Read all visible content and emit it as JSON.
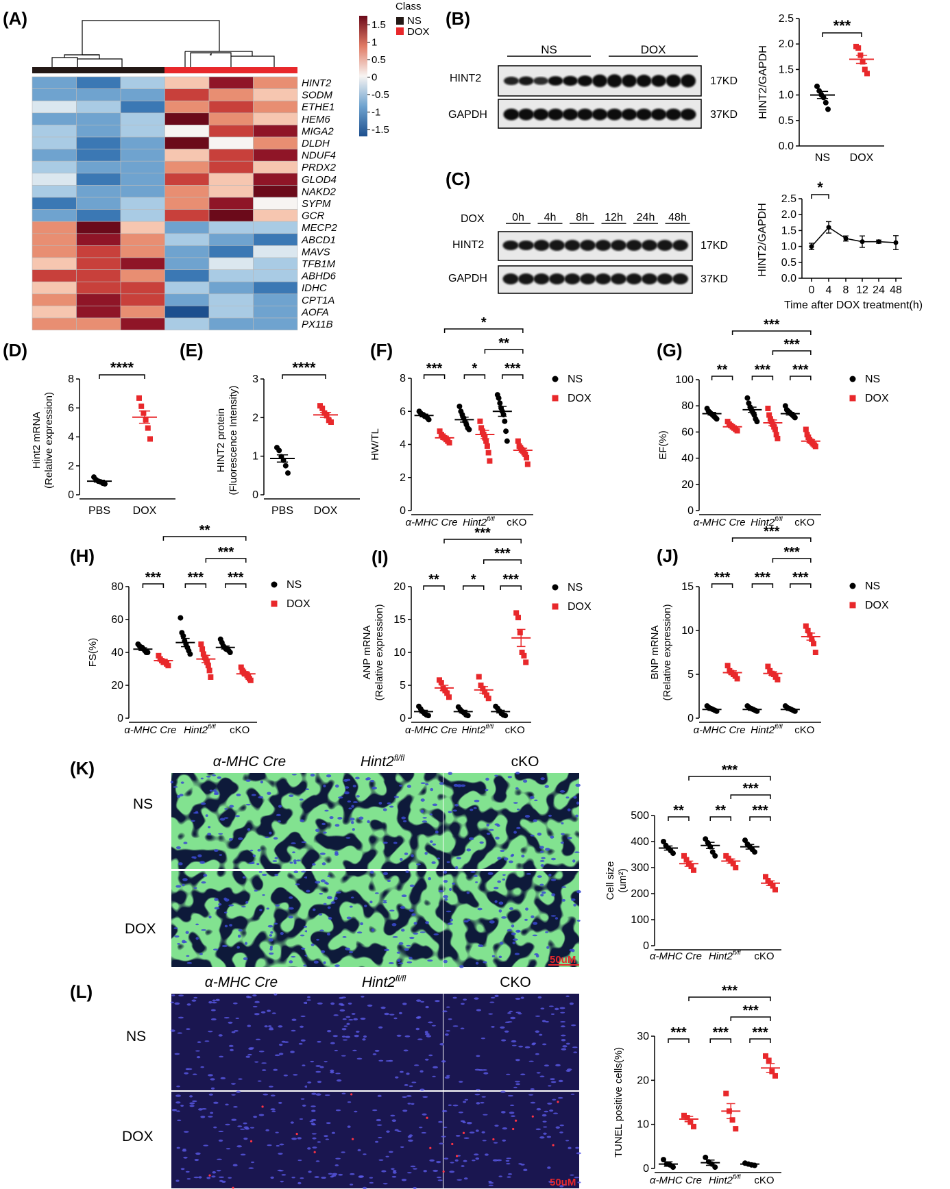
{
  "colors": {
    "ns": "#000000",
    "dox": "#e8282b",
    "micro_nuclei": "#3a4ad0",
    "micro_membrane": "#3fbf3a",
    "tunel_bg": "#1a1650"
  },
  "scalebar": "50uM",
  "panel_a": {
    "label": "(A)",
    "legend_title": "Class",
    "legend_items": [
      {
        "name": "NS",
        "color": "#231815"
      },
      {
        "name": "DOX",
        "color": "#e8282b"
      }
    ],
    "colorbar_ticks": [
      "1.5",
      "1",
      "0.5",
      "0",
      "-0.5",
      "-1",
      "-1.5"
    ],
    "genes": [
      "HINT2",
      "SODM",
      "ETHE1",
      "HEM6",
      "MIGA2",
      "DLDH",
      "NDUF4",
      "PRDX2",
      "GLOD4",
      "NAKD2",
      "SYPM",
      "GCR",
      "MECP2",
      "ABCD1",
      "MAVS",
      "TFB1M",
      "ABHD6",
      "IDHC",
      "CPT1A",
      "AOFA",
      "PX11B"
    ]
  },
  "panel_b": {
    "label": "(B)",
    "groups": [
      "NS",
      "DOX"
    ],
    "bands": [
      "HINT2",
      "GAPDH"
    ],
    "kd": [
      "17KD",
      "37KD"
    ],
    "ylabel": "HINT2/GAPDH",
    "categories": [
      "NS",
      "DOX"
    ],
    "yticks": [
      "0.0",
      "0.5",
      "1.0",
      "1.5",
      "2.0",
      "2.5"
    ],
    "sig": "***"
  },
  "panel_c": {
    "label": "(C)",
    "row_label": "DOX",
    "times": [
      "0h",
      "4h",
      "8h",
      "12h",
      "24h",
      "48h"
    ],
    "bands": [
      "HINT2",
      "GAPDH"
    ],
    "kd": [
      "17KD",
      "37KD"
    ],
    "ylabel": "HINT2/GAPDH",
    "xlabel": "Time after DOX treatment(h)",
    "xticks": [
      "0",
      "4",
      "8",
      "12",
      "24",
      "48"
    ],
    "yticks": [
      "0.0",
      "0.5",
      "1.0",
      "1.5",
      "2.0",
      "2.5"
    ],
    "sig": "*"
  },
  "panels_de": [
    {
      "label": "(D)",
      "ylabel1": "Hint2 mRNA",
      "ylabel2": "(Relative expression)",
      "categories": [
        "PBS",
        "DOX"
      ],
      "yticks": [
        "0",
        "2",
        "4",
        "6",
        "8"
      ],
      "sig": "****"
    },
    {
      "label": "(E)",
      "ylabel1": "HINT2 protein",
      "ylabel2": "(Fluorescence Intensity)",
      "categories": [
        "PBS",
        "DOX"
      ],
      "yticks": [
        "0",
        "1",
        "2",
        "3"
      ],
      "sig": "****"
    }
  ],
  "grouped_panels": [
    {
      "label": "(F)",
      "ylabel1": "HW/TL",
      "ylabel2": "",
      "yticks": [
        "0",
        "2",
        "4",
        "6",
        "8"
      ],
      "sig_pairs": [
        "***",
        "*",
        "***"
      ],
      "sig_top": "*",
      "sig_mid": "**"
    },
    {
      "label": "(G)",
      "ylabel1": "EF(%)",
      "ylabel2": "",
      "yticks": [
        "0",
        "20",
        "40",
        "60",
        "80",
        "100"
      ],
      "sig_pairs": [
        "**",
        "***",
        "***"
      ],
      "sig_top": "***",
      "sig_mid": "***"
    },
    {
      "label": "(H)",
      "ylabel1": "FS(%)",
      "ylabel2": "",
      "yticks": [
        "0",
        "20",
        "40",
        "60",
        "80"
      ],
      "sig_pairs": [
        "***",
        "***",
        "***"
      ],
      "sig_top": "**",
      "sig_mid": "***"
    },
    {
      "label": "(I)",
      "ylabel1": "ANP mRNA",
      "ylabel2": "(Relative expression)",
      "yticks": [
        "0",
        "5",
        "10",
        "15",
        "20"
      ],
      "sig_pairs": [
        "**",
        "*",
        "***"
      ],
      "sig_top": "***",
      "sig_mid": "***"
    },
    {
      "label": "(J)",
      "ylabel1": "BNP mRNA",
      "ylabel2": "(Relative expression)",
      "yticks": [
        "0",
        "5",
        "10",
        "15"
      ],
      "sig_pairs": [
        "***",
        "***",
        "***"
      ],
      "sig_top": "***",
      "sig_mid": "***"
    },
    {
      "label": "",
      "ylabel1": "Cell size",
      "ylabel2": "(um²)",
      "yticks": [
        "0",
        "100",
        "200",
        "300",
        "400",
        "500"
      ],
      "sig_pairs": [
        "**",
        "**",
        "***"
      ],
      "sig_top": "***",
      "sig_mid": "***"
    },
    {
      "label": "",
      "ylabel1": "TUNEL positive cells(%)",
      "ylabel2": "",
      "yticks": [
        "0",
        "10",
        "20",
        "30"
      ],
      "sig_pairs": [
        "***",
        "***",
        "***"
      ],
      "sig_top": "***",
      "sig_mid": "***"
    }
  ],
  "group_labels": {
    "cre": "α-MHC Cre",
    "flox_base": "Hint2",
    "flox_sup": "fl/fl",
    "cko": "cKO"
  },
  "legend_ns": "NS",
  "legend_dox": "DOX",
  "panel_k": {
    "label": "(K)",
    "cols": [
      "α-MHC Cre",
      "Hint2",
      "cKO"
    ],
    "col_sup": "fl/fl",
    "rows": [
      "NS",
      "DOX"
    ]
  },
  "panel_l": {
    "label": "(L)",
    "cols": [
      "α-MHC Cre",
      "Hint2",
      "CKO"
    ],
    "col_sup": "fl/fl",
    "rows": [
      "NS",
      "DOX"
    ]
  },
  "chart_data": [
    {
      "type": "scatter",
      "id": "B",
      "categories": [
        "NS",
        "DOX"
      ],
      "ylabel": "HINT2/GAPDH",
      "ylim": [
        0,
        2.5
      ],
      "series": [
        {
          "name": "NS",
          "values": [
            1.17,
            1.08,
            1.0,
            0.95,
            0.85,
            0.72
          ]
        },
        {
          "name": "DOX",
          "values": [
            1.95,
            1.92,
            1.78,
            1.65,
            1.5,
            1.42
          ]
        }
      ],
      "means": [
        1.0,
        1.7
      ],
      "sem": [
        0.07,
        0.08
      ]
    },
    {
      "type": "line",
      "id": "C",
      "x": [
        0,
        4,
        8,
        12,
        24,
        48
      ],
      "y": [
        1.0,
        1.6,
        1.25,
        1.15,
        1.15,
        1.12
      ],
      "err": [
        0.1,
        0.18,
        0.08,
        0.18,
        0.05,
        0.22
      ],
      "xlabel": "Time after DOX treatment(h)",
      "ylabel": "HINT2/GAPDH",
      "ylim": [
        0,
        2.5
      ]
    },
    {
      "type": "scatter",
      "id": "D",
      "categories": [
        "PBS",
        "DOX"
      ],
      "ylabel": "Hint2 mRNA (Relative expression)",
      "ylim": [
        0,
        8
      ],
      "series": [
        {
          "name": "PBS",
          "values": [
            1.3,
            1.1,
            1.0,
            0.95,
            0.85,
            0.8
          ]
        },
        {
          "name": "DOX",
          "values": [
            7.1,
            6.5,
            6.0,
            5.5,
            4.9,
            4.1
          ]
        }
      ],
      "means": [
        1.0,
        5.7
      ],
      "sem": [
        0.07,
        0.45
      ]
    },
    {
      "type": "scatter",
      "id": "E",
      "categories": [
        "PBS",
        "DOX"
      ],
      "ylabel": "HINT2 protein (Fluorescence Intensity)",
      "ylim": [
        0,
        3
      ],
      "series": [
        {
          "name": "PBS",
          "values": [
            1.3,
            1.22,
            1.05,
            0.95,
            0.8,
            0.6
          ]
        },
        {
          "name": "DOX",
          "values": [
            2.45,
            2.38,
            2.25,
            2.18,
            2.05,
            2.0
          ]
        }
      ],
      "means": [
        1.0,
        2.2
      ],
      "sem": [
        0.1,
        0.07
      ]
    },
    {
      "type": "scatter",
      "id": "F",
      "categories": [
        "α-MHC Cre",
        "Hint2fl/fl",
        "cKO"
      ],
      "ylabel": "HW/TL",
      "ylim": [
        0,
        8
      ],
      "series": [
        {
          "name": "NS",
          "values": [
            [
              6.0,
              5.9,
              5.8,
              5.8,
              5.7,
              5.7,
              5.6,
              5.5
            ],
            [
              6.3,
              6.0,
              5.8,
              5.6,
              5.4,
              5.2,
              5.0,
              4.9
            ],
            [
              7.0,
              6.8,
              6.5,
              6.2,
              6.0,
              5.8,
              5.4,
              4.8,
              4.2
            ]
          ]
        },
        {
          "name": "DOX",
          "values": [
            [
              4.8,
              4.6,
              4.5,
              4.4,
              4.3,
              4.2,
              4.1
            ],
            [
              5.4,
              5.0,
              4.8,
              4.6,
              4.4,
              4.2,
              3.9,
              3.5,
              3.0
            ],
            [
              4.2,
              3.9,
              3.8,
              3.7,
              3.6,
              3.5,
              3.4,
              3.2,
              2.8
            ]
          ]
        }
      ],
      "means": [
        [
          5.75,
          4.4
        ],
        [
          5.5,
          4.6
        ],
        [
          6.0,
          3.65
        ]
      ],
      "sem": [
        [
          0.08,
          0.1
        ],
        [
          0.15,
          0.25
        ],
        [
          0.3,
          0.12
        ]
      ]
    },
    {
      "type": "scatter",
      "id": "G",
      "categories": [
        "α-MHC Cre",
        "Hint2fl/fl",
        "cKO"
      ],
      "ylabel": "EF(%)",
      "ylim": [
        0,
        100
      ],
      "series": [
        {
          "name": "NS",
          "values": [
            [
              78,
              76,
              75,
              74,
              73,
              72,
              71,
              70
            ],
            [
              86,
              82,
              79,
              77,
              75,
              73,
              70,
              68
            ],
            [
              80,
              77,
              76,
              75,
              74,
              73,
              72,
              71
            ]
          ]
        },
        {
          "name": "DOX",
          "values": [
            [
              68,
              66,
              65,
              64,
              63,
              62,
              61
            ],
            [
              78,
              73,
              70,
              68,
              66,
              64,
              62,
              58,
              55
            ],
            [
              62,
              58,
              56,
              54,
              53,
              52,
              51,
              50,
              49
            ]
          ]
        }
      ],
      "means": [
        [
          74,
          64
        ],
        [
          77,
          67
        ],
        [
          74,
          53
        ]
      ],
      "sem": [
        [
          1.0,
          0.8
        ],
        [
          2.0,
          2.2
        ],
        [
          1.0,
          1.2
        ]
      ]
    },
    {
      "type": "scatter",
      "id": "H",
      "categories": [
        "α-MHC Cre",
        "Hint2fl/fl",
        "cKO"
      ],
      "ylabel": "FS(%)",
      "ylim": [
        0,
        80
      ],
      "series": [
        {
          "name": "NS",
          "values": [
            [
              45,
              44,
              43,
              43,
              42,
              41,
              40,
              40
            ],
            [
              61,
              52,
              50,
              47,
              45,
              43,
              41,
              39
            ],
            [
              48,
              46,
              44,
              43,
              42,
              42,
              41,
              40
            ]
          ]
        },
        {
          "name": "DOX",
          "values": [
            [
              38,
              36,
              35,
              34,
              34,
              33,
              32
            ],
            [
              45,
              42,
              39,
              37,
              36,
              34,
              32,
              29,
              25
            ],
            [
              31,
              29,
              28,
              27,
              27,
              26,
              25,
              24,
              23
            ]
          ]
        }
      ],
      "means": [
        [
          42,
          35
        ],
        [
          46,
          36
        ],
        [
          43,
          27
        ]
      ],
      "sem": [
        [
          0.8,
          0.8
        ],
        [
          2.5,
          2.2
        ],
        [
          0.9,
          1.0
        ]
      ]
    },
    {
      "type": "scatter",
      "id": "I",
      "categories": [
        "α-MHC Cre",
        "Hint2fl/fl",
        "cKO"
      ],
      "ylabel": "ANP mRNA (Relative expression)",
      "ylim": [
        0,
        20
      ],
      "series": [
        {
          "name": "NS",
          "values": [
            [
              1.8,
              1.4,
              1.0,
              0.7,
              0.5,
              0.4
            ],
            [
              1.7,
              1.3,
              1.0,
              0.8,
              0.5,
              0.4
            ],
            [
              1.8,
              1.5,
              1.1,
              0.7,
              0.5,
              0.4
            ]
          ]
        },
        {
          "name": "DOX",
          "values": [
            [
              5.8,
              5.4,
              4.5,
              4.2,
              3.8,
              3.2
            ],
            [
              6.3,
              5.0,
              4.5,
              4.0,
              3.5,
              3.0
            ],
            [
              16.0,
              15.3,
              13.0,
              10.0,
              9.5,
              8.5
            ]
          ]
        }
      ],
      "means": [
        [
          1.0,
          4.6
        ],
        [
          1.0,
          4.3
        ],
        [
          1.0,
          12.2
        ]
      ],
      "sem": [
        [
          0.2,
          0.4
        ],
        [
          0.2,
          0.5
        ],
        [
          0.2,
          1.3
        ]
      ]
    },
    {
      "type": "scatter",
      "id": "J",
      "categories": [
        "α-MHC Cre",
        "Hint2fl/fl",
        "cKO"
      ],
      "ylabel": "BNP mRNA (Relative expression)",
      "ylim": [
        0,
        15
      ],
      "series": [
        {
          "name": "NS",
          "values": [
            [
              1.4,
              1.2,
              1.1,
              1.0,
              0.9,
              0.8
            ],
            [
              1.4,
              1.2,
              1.1,
              1.0,
              0.9,
              0.8
            ],
            [
              1.4,
              1.2,
              1.1,
              1.0,
              0.9,
              0.8
            ]
          ]
        },
        {
          "name": "DOX",
          "values": [
            [
              6.0,
              5.4,
              5.2,
              5.0,
              4.8,
              4.5
            ],
            [
              5.9,
              5.4,
              5.1,
              5.0,
              4.7,
              4.4
            ],
            [
              10.5,
              10.0,
              9.5,
              9.0,
              8.5,
              7.5
            ]
          ]
        }
      ],
      "means": [
        [
          1.0,
          5.2
        ],
        [
          1.0,
          5.1
        ],
        [
          1.0,
          9.3
        ]
      ],
      "sem": [
        [
          0.1,
          0.2
        ],
        [
          0.1,
          0.2
        ],
        [
          0.1,
          0.4
        ]
      ]
    },
    {
      "type": "scatter",
      "id": "K",
      "categories": [
        "α-MHC Cre",
        "Hint2fl/fl",
        "cKO"
      ],
      "ylabel": "Cell size (um²)",
      "ylim": [
        0,
        500
      ],
      "series": [
        {
          "name": "NS",
          "values": [
            [
              400,
              385,
              375,
              365,
              355
            ],
            [
              410,
              395,
              380,
              360,
              345
            ],
            [
              405,
              390,
              380,
              370,
              360
            ]
          ]
        },
        {
          "name": "DOX",
          "values": [
            [
              345,
              330,
              315,
              305,
              290
            ],
            [
              345,
              335,
              325,
              315,
              300
            ],
            [
              265,
              250,
              240,
              230,
              215
            ]
          ]
        }
      ],
      "means": [
        [
          375,
          315
        ],
        [
          385,
          325
        ],
        [
          380,
          240
        ]
      ],
      "sem": [
        [
          8,
          10
        ],
        [
          12,
          8
        ],
        [
          9,
          9
        ]
      ]
    },
    {
      "type": "scatter",
      "id": "L",
      "categories": [
        "α-MHC Cre",
        "Hint2fl/fl",
        "cKO"
      ],
      "ylabel": "TUNEL positive cells(%)",
      "ylim": [
        0,
        30
      ],
      "series": [
        {
          "name": "NS",
          "values": [
            [
              2.0,
              1.0,
              0.8,
              0.3
            ],
            [
              2.5,
              1.5,
              1.0,
              0.3
            ],
            [
              1.2,
              1.0,
              0.8,
              0.7
            ]
          ]
        },
        {
          "name": "DOX",
          "values": [
            [
              12.0,
              11.5,
              10.5,
              9.5
            ],
            [
              17.0,
              13.0,
              11.0,
              9.0
            ],
            [
              25.5,
              24.5,
              22.0,
              21.0
            ]
          ]
        }
      ],
      "means": [
        [
          1.0,
          11.2
        ],
        [
          1.3,
          13.0
        ],
        [
          1.0,
          22.8
        ]
      ],
      "sem": [
        [
          0.5,
          0.6
        ],
        [
          0.6,
          1.7
        ],
        [
          0.2,
          1.0
        ]
      ]
    }
  ]
}
